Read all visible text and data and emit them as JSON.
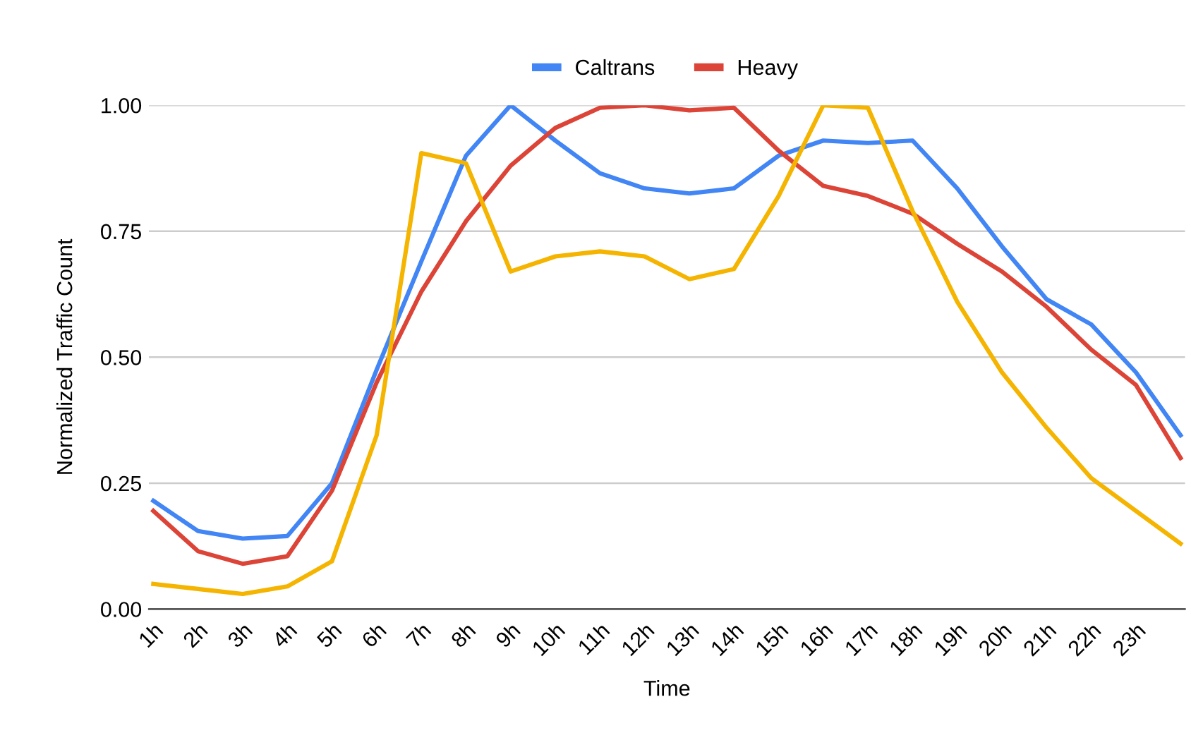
{
  "chart_data": {
    "type": "line",
    "xlabel": "Time",
    "ylabel": "Normalized Traffic Count",
    "categories": [
      "1h",
      "2h",
      "3h",
      "4h",
      "5h",
      "6h",
      "7h",
      "8h",
      "9h",
      "10h",
      "11h",
      "12h",
      "13h",
      "14h",
      "15h",
      "16h",
      "17h",
      "18h",
      "19h",
      "20h",
      "21h",
      "22h",
      "23h",
      null
    ],
    "series": [
      {
        "name": "Caltrans",
        "color": "#4285f4",
        "values": [
          0.215,
          0.155,
          0.14,
          0.145,
          0.25,
          0.475,
          0.69,
          0.9,
          1.0,
          0.93,
          0.865,
          0.835,
          0.825,
          0.835,
          0.9,
          0.93,
          0.925,
          0.93,
          0.835,
          0.72,
          0.615,
          0.565,
          0.47,
          0.345
        ]
      },
      {
        "name": "Heavy",
        "color": "#db4437",
        "values": [
          0.195,
          0.115,
          0.09,
          0.105,
          0.235,
          0.45,
          0.63,
          0.77,
          0.88,
          0.955,
          0.995,
          1.0,
          0.99,
          0.995,
          0.91,
          0.84,
          0.82,
          0.785,
          0.725,
          0.67,
          0.6,
          0.515,
          0.445,
          0.3
        ]
      },
      {
        "color": "#f4b400",
        "values": [
          0.05,
          0.04,
          0.03,
          0.045,
          0.095,
          0.345,
          0.905,
          0.885,
          0.67,
          0.7,
          0.71,
          0.7,
          0.655,
          0.675,
          0.82,
          1.0,
          0.995,
          0.79,
          0.61,
          0.47,
          0.36,
          0.26,
          0.195,
          0.13
        ]
      }
    ],
    "ylim": [
      0,
      1.0
    ],
    "yticks": [
      {
        "value": 0,
        "label": "0.00"
      },
      {
        "value": 0.25,
        "label": "0.25"
      },
      {
        "value": 0.5,
        "label": "0.50"
      },
      {
        "value": 0.75,
        "label": "0.75"
      },
      {
        "value": 1.0,
        "label": "1.00"
      }
    ],
    "grid": "y",
    "legend": "top",
    "marker": "none",
    "line_style": "solid"
  }
}
